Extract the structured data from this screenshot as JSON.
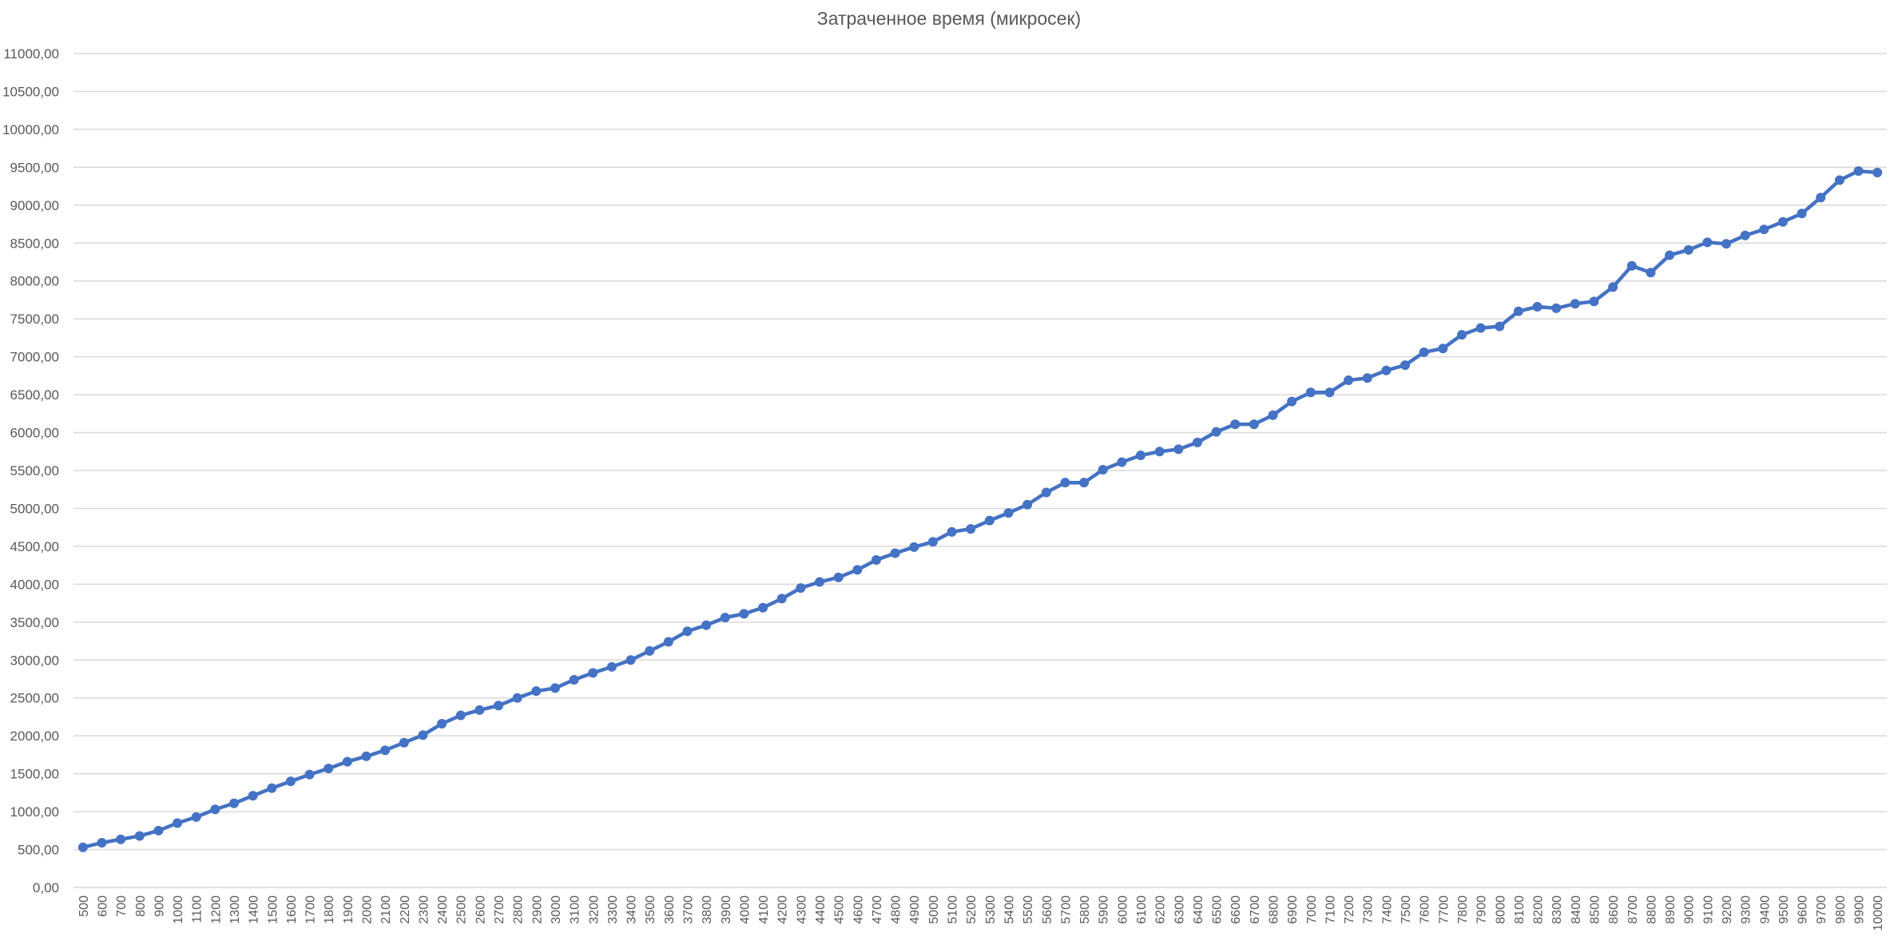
{
  "chart_data": {
    "type": "line",
    "title": "Затраченное время (микросек)",
    "xlabel": "",
    "ylabel": "",
    "ylim": [
      0,
      11000
    ],
    "y_ticks": [
      0,
      500,
      1000,
      1500,
      2000,
      2500,
      3000,
      3500,
      4000,
      4500,
      5000,
      5500,
      6000,
      6500,
      7000,
      7500,
      8000,
      8500,
      9000,
      9500,
      10000,
      10500,
      11000
    ],
    "y_tick_labels": [
      "0,00",
      "500,00",
      "1000,00",
      "1500,00",
      "2000,00",
      "2500,00",
      "3000,00",
      "3500,00",
      "4000,00",
      "4500,00",
      "5000,00",
      "5500,00",
      "6000,00",
      "6500,00",
      "7000,00",
      "7500,00",
      "8000,00",
      "8500,00",
      "9000,00",
      "9500,00",
      "10000,00",
      "10500,00",
      "11000,00"
    ],
    "grid": true,
    "legend": "none",
    "line_color": "#4472C4",
    "grid_color": "#d9d9d9",
    "categories": [
      "500",
      "600",
      "700",
      "800",
      "900",
      "1000",
      "1100",
      "1200",
      "1300",
      "1400",
      "1500",
      "1600",
      "1700",
      "1800",
      "1900",
      "2000",
      "2100",
      "2200",
      "2300",
      "2400",
      "2500",
      "2600",
      "2700",
      "2800",
      "2900",
      "3000",
      "3100",
      "3200",
      "3300",
      "3400",
      "3500",
      "3600",
      "3700",
      "3800",
      "3900",
      "4000",
      "4100",
      "4200",
      "4300",
      "4400",
      "4500",
      "4600",
      "4700",
      "4800",
      "4900",
      "5000",
      "5100",
      "5200",
      "5300",
      "5400",
      "5500",
      "5600",
      "5700",
      "5800",
      "5900",
      "6000",
      "6100",
      "6200",
      "6300",
      "6400",
      "6500",
      "6600",
      "6700",
      "6800",
      "6900",
      "7000",
      "7100",
      "7200",
      "7300",
      "7400",
      "7500",
      "7600",
      "7700",
      "7800",
      "7900",
      "8000",
      "8100",
      "8200",
      "8300",
      "8400",
      "8500",
      "8600",
      "8700",
      "8800",
      "8900",
      "9000",
      "9100",
      "9200",
      "9300",
      "9400",
      "9500",
      "9600",
      "9700",
      "9800",
      "9900",
      "10000"
    ],
    "values": [
      530,
      590,
      635,
      680,
      750,
      850,
      930,
      1030,
      1110,
      1210,
      1310,
      1400,
      1490,
      1570,
      1660,
      1730,
      1810,
      1910,
      2010,
      2160,
      2270,
      2340,
      2400,
      2500,
      2590,
      2630,
      2740,
      2830,
      2910,
      3000,
      3120,
      3240,
      3380,
      3460,
      3560,
      3610,
      3690,
      3810,
      3950,
      4030,
      4090,
      4190,
      4320,
      4410,
      4490,
      4560,
      4690,
      4730,
      4840,
      4940,
      5050,
      5210,
      5340,
      5340,
      5510,
      5610,
      5700,
      5750,
      5780,
      5870,
      6010,
      6110,
      6110,
      6230,
      6410,
      6530,
      6530,
      6690,
      6720,
      6820,
      6890,
      7060,
      7110,
      7290,
      7380,
      7400,
      7600,
      7660,
      7640,
      7700,
      7730,
      7920,
      8200,
      8110,
      8340,
      8410,
      8510,
      8490,
      8600,
      8680,
      8780,
      8890,
      9100,
      9330,
      9450,
      9430
    ]
  }
}
